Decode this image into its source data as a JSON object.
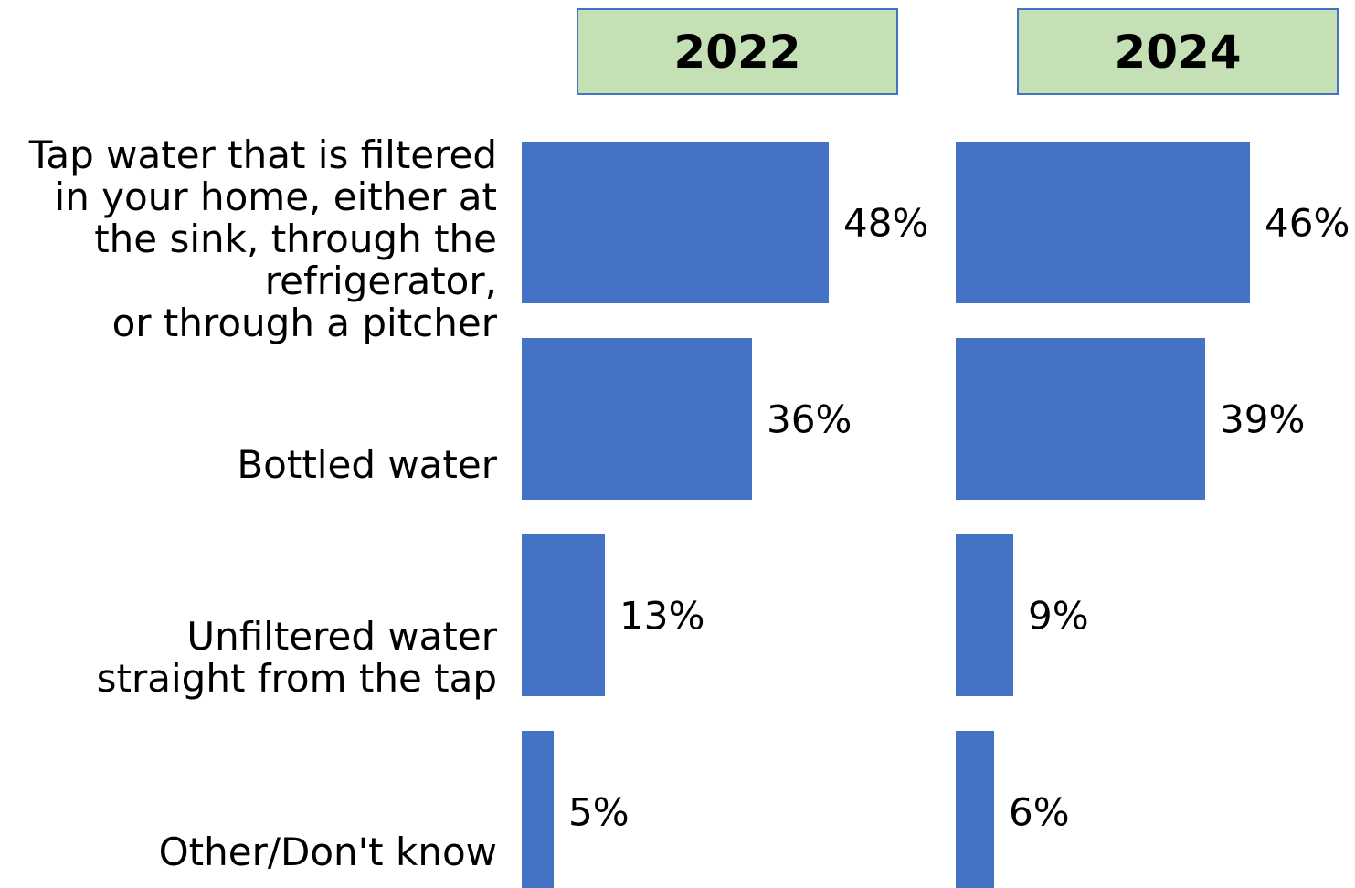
{
  "chart_data": {
    "type": "bar",
    "orientation": "horizontal",
    "categories": [
      "Tap water that is filtered\nin your home, either at\nthe sink, through the\nrefrigerator,\nor through a pitcher",
      "Bottled water",
      "Unfiltered water\nstraight from the tap",
      "Other/Don't know"
    ],
    "series": [
      {
        "name": "2022",
        "values": [
          48,
          36,
          13,
          5
        ],
        "labels": [
          "48%",
          "36%",
          "13%",
          "5%"
        ]
      },
      {
        "name": "2024",
        "values": [
          46,
          39,
          9,
          6
        ],
        "labels": [
          "46%",
          "39%",
          "9%",
          "6%"
        ]
      }
    ],
    "layout": "small-multiples",
    "grid": false,
    "bar_color": "#4472c4",
    "header_fill": "#c5e0b4",
    "header_border": "#4472c4"
  }
}
